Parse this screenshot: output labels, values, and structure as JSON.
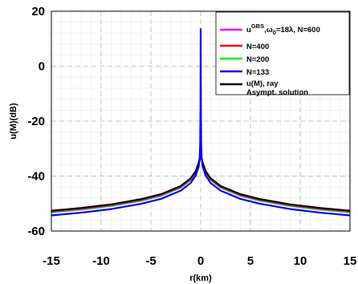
{
  "chart_data": {
    "type": "line",
    "xlabel": "r(km)",
    "ylabel": "u(M)(dB)",
    "xlim": [
      -15,
      15
    ],
    "ylim": [
      -60,
      20
    ],
    "xticks": [
      "-15",
      "-10",
      "-5",
      "0",
      "5",
      "10",
      "15"
    ],
    "yticks": [
      "20",
      "0",
      "-20",
      "-40",
      "-60"
    ],
    "grid": true,
    "legend_position": "top-right",
    "legend": [
      {
        "text": "u^{GBS},ω_0=18λ, N=600",
        "color": "#ff00ff"
      },
      {
        "text": "N=400",
        "color": "#ff0000"
      },
      {
        "text": "N=200",
        "color": "#00ee00"
      },
      {
        "text": "N=133",
        "color": "#0000ff"
      },
      {
        "text": "u(M), ray",
        "color": "#000000"
      },
      {
        "text": "Asympt. solution",
        "color": "#000000"
      }
    ],
    "series": [
      {
        "name": "N=200",
        "color": "#00ee00",
        "x": [
          -15,
          -12,
          -9,
          -6,
          -4,
          -2,
          -1,
          -0.5,
          -0.2,
          -0.05,
          0,
          0.05,
          0.2,
          0.5,
          1,
          2,
          4,
          6,
          9,
          12,
          15
        ],
        "y": [
          -53.2,
          -52.2,
          -50.9,
          -49,
          -47.2,
          -44.2,
          -41.4,
          -38.8,
          -35.7,
          -33.5,
          -33,
          -33.5,
          -35.7,
          -38.8,
          -41.4,
          -44.2,
          -47.2,
          -49,
          -50.9,
          -52.2,
          -53.2
        ]
      },
      {
        "name": "N=400",
        "color": "#ff0000",
        "x": [
          -15,
          -12,
          -9,
          -6,
          -4,
          -2,
          -1,
          -0.5,
          -0.2,
          -0.05,
          0,
          0.05,
          0.2,
          0.5,
          1,
          2,
          4,
          6,
          9,
          12,
          15
        ],
        "y": [
          -52.9,
          -51.9,
          -50.6,
          -48.7,
          -46.9,
          -43.9,
          -41.1,
          -38.5,
          -35.4,
          -33.2,
          -32.7,
          -33.2,
          -35.4,
          -38.5,
          -41.1,
          -43.9,
          -46.9,
          -48.7,
          -50.6,
          -51.9,
          -52.9
        ]
      },
      {
        "name": "u^{GBS},ω_0=18λ, N=600",
        "color": "#ff00ff",
        "x": [
          -15,
          -12,
          -9,
          -6,
          -4,
          -2,
          -1,
          -0.5,
          -0.2,
          -0.05,
          0,
          0.05,
          0.2,
          0.5,
          1,
          2,
          4,
          6,
          9,
          12,
          15
        ],
        "y": [
          -52.8,
          -51.8,
          -50.5,
          -48.6,
          -46.8,
          -43.8,
          -41,
          -38.4,
          -35.3,
          -33.1,
          -32.6,
          -33.1,
          -35.3,
          -38.4,
          -41,
          -43.8,
          -46.8,
          -48.6,
          -50.5,
          -51.8,
          -52.8
        ]
      },
      {
        "name": "u(M), ray",
        "color": "#000000",
        "x": [
          -15,
          -12,
          -9,
          -6,
          -4,
          -2,
          -1,
          -0.5,
          -0.2,
          -0.05,
          0,
          0.05,
          0.2,
          0.5,
          1,
          2,
          4,
          6,
          9,
          12,
          15
        ],
        "y": [
          -52.6,
          -51.6,
          -50.3,
          -48.4,
          -46.6,
          -43.6,
          -40.8,
          -38.2,
          -35.1,
          -32.9,
          -32.4,
          -32.9,
          -35.1,
          -38.2,
          -40.8,
          -43.6,
          -46.6,
          -48.4,
          -50.3,
          -51.6,
          -52.6
        ]
      },
      {
        "name": "N=133",
        "color": "#0000ff",
        "x": [
          -15,
          -12,
          -9,
          -6,
          -4,
          -2,
          -1,
          -0.5,
          -0.2,
          -0.1,
          -0.05,
          -0.02,
          0,
          0.02,
          0.05,
          0.1,
          0.2,
          0.5,
          1,
          2,
          4,
          6,
          9,
          12,
          15
        ],
        "y": [
          -54.3,
          -53.3,
          -52,
          -50.1,
          -48.3,
          -45.3,
          -42.5,
          -39.8,
          -36.5,
          -33.5,
          -28,
          -15,
          13.5,
          -15,
          -28,
          -33.5,
          -36.5,
          -39.8,
          -42.5,
          -45.3,
          -48.3,
          -50.1,
          -52,
          -53.3,
          -54.3
        ]
      }
    ]
  }
}
